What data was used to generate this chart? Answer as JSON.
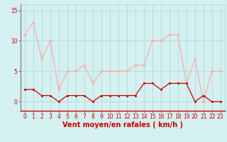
{
  "x": [
    0,
    1,
    2,
    3,
    4,
    5,
    6,
    7,
    8,
    9,
    10,
    11,
    12,
    13,
    14,
    15,
    16,
    17,
    18,
    19,
    20,
    21,
    22,
    23
  ],
  "avg_wind": [
    2,
    2,
    1,
    1,
    0,
    1,
    1,
    1,
    0,
    1,
    1,
    1,
    1,
    1,
    3,
    3,
    2,
    3,
    3,
    3,
    0,
    1,
    0,
    0
  ],
  "gust_wind": [
    11,
    13,
    7,
    10,
    2,
    5,
    5,
    6,
    3,
    5,
    5,
    5,
    5,
    6,
    6,
    10,
    10,
    11,
    11,
    3,
    7,
    0,
    5,
    5
  ],
  "avg_color": "#cc0000",
  "gust_color": "#ffaaaa",
  "bg_color": "#d4f0f0",
  "grid_color": "#aad8d8",
  "spine_color": "#888888",
  "xlabel": "Vent moyen/en rafales ( km/h )",
  "xlim": [
    -0.5,
    23.5
  ],
  "ylim": [
    -1.5,
    16
  ],
  "yticks": [
    0,
    5,
    10,
    15
  ],
  "xticks": [
    0,
    1,
    2,
    3,
    4,
    5,
    6,
    7,
    8,
    9,
    10,
    11,
    12,
    13,
    14,
    15,
    16,
    17,
    18,
    19,
    20,
    21,
    22,
    23
  ],
  "tick_fontsize": 5.5,
  "xlabel_fontsize": 7,
  "marker_size": 2.0,
  "line_width": 0.9
}
